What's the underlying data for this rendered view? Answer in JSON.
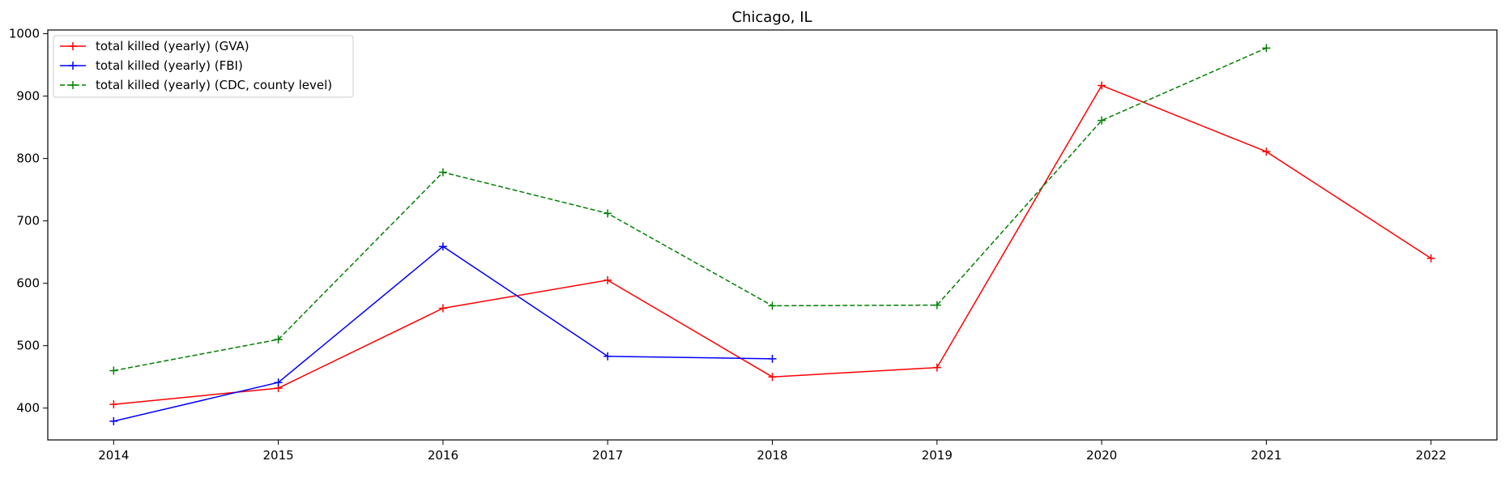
{
  "chart_data": {
    "type": "line",
    "title": "Chicago, IL",
    "xlabel": "",
    "ylabel": "",
    "x": [
      2014,
      2015,
      2016,
      2017,
      2018,
      2019,
      2020,
      2021,
      2022
    ],
    "xlim": [
      2013.6,
      2022.4
    ],
    "ylim": [
      349,
      1006
    ],
    "xticks": [
      "2014",
      "2015",
      "2016",
      "2017",
      "2018",
      "2019",
      "2020",
      "2021",
      "2022"
    ],
    "yticks": [
      "400",
      "500",
      "600",
      "700",
      "800",
      "900",
      "1000"
    ],
    "grid": false,
    "legend_position": "top-left",
    "series": [
      {
        "name": "total killed (yearly) (GVA)",
        "color": "#ff0000",
        "dashed": false,
        "marker": "plus",
        "points": [
          [
            2014,
            406
          ],
          [
            2015,
            432
          ],
          [
            2016,
            560
          ],
          [
            2017,
            605
          ],
          [
            2018,
            450
          ],
          [
            2019,
            465
          ],
          [
            2020,
            917
          ],
          [
            2021,
            811
          ],
          [
            2022,
            640
          ]
        ]
      },
      {
        "name": "total killed (yearly) (FBI)",
        "color": "#0000ff",
        "dashed": false,
        "marker": "plus",
        "points": [
          [
            2014,
            379
          ],
          [
            2015,
            441
          ],
          [
            2016,
            659
          ],
          [
            2017,
            483
          ],
          [
            2018,
            479
          ]
        ]
      },
      {
        "name": "total killed (yearly) (CDC, county level)",
        "color": "#008000",
        "dashed": true,
        "marker": "plus",
        "points": [
          [
            2014,
            460
          ],
          [
            2015,
            510
          ],
          [
            2016,
            778
          ],
          [
            2017,
            712
          ],
          [
            2018,
            564
          ],
          [
            2019,
            565
          ],
          [
            2020,
            861
          ],
          [
            2021,
            977
          ]
        ]
      }
    ]
  }
}
